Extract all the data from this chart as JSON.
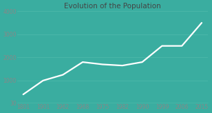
{
  "title": "Evolution of the Population",
  "x_labels": [
    "1801",
    "1901",
    "1962",
    "1968",
    "1975",
    "1982",
    "1990",
    "1999",
    "2006",
    "2015"
  ],
  "y": [
    400,
    1000,
    1250,
    1800,
    1700,
    1650,
    1800,
    2500,
    2500,
    3500
  ],
  "bg_color": "#3aada0",
  "line_color": "#ffffff",
  "text_color": "#888888",
  "title_color": "#444444",
  "ylim_min": 30,
  "ylim_max": 4000,
  "yticks": [
    30,
    1000,
    2000,
    3000,
    4000
  ],
  "grid_color": "#4db8aa",
  "line_width": 1.6,
  "title_fontsize": 7.5
}
